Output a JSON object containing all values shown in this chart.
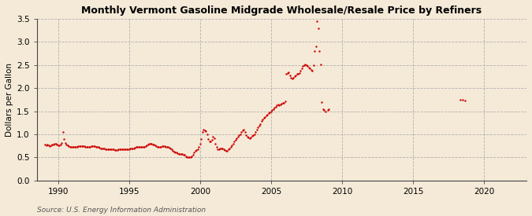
{
  "title": "Monthly Vermont Gasoline Midgrade Wholesale/Resale Price by Refiners",
  "ylabel": "Dollars per Gallon",
  "source": "Source: U.S. Energy Information Administration",
  "background_color": "#f5ead8",
  "plot_bg_color": "#f5ead8",
  "dot_color": "#cc0000",
  "grid_color": "#aaaaaa",
  "spine_color": "#444444",
  "xlim": [
    1988.5,
    2023
  ],
  "ylim": [
    0.0,
    3.5
  ],
  "xticks": [
    1990,
    1995,
    2000,
    2005,
    2010,
    2015,
    2020
  ],
  "yticks": [
    0.0,
    0.5,
    1.0,
    1.5,
    2.0,
    2.5,
    3.0,
    3.5
  ],
  "data": [
    [
      1989.08,
      0.78
    ],
    [
      1989.17,
      0.76
    ],
    [
      1989.25,
      0.77
    ],
    [
      1989.33,
      0.76
    ],
    [
      1989.42,
      0.75
    ],
    [
      1989.5,
      0.76
    ],
    [
      1989.58,
      0.77
    ],
    [
      1989.67,
      0.78
    ],
    [
      1989.75,
      0.79
    ],
    [
      1989.83,
      0.8
    ],
    [
      1989.92,
      0.78
    ],
    [
      1990.0,
      0.76
    ],
    [
      1990.08,
      0.76
    ],
    [
      1990.17,
      0.78
    ],
    [
      1990.25,
      0.82
    ],
    [
      1990.33,
      1.05
    ],
    [
      1990.42,
      0.9
    ],
    [
      1990.5,
      0.82
    ],
    [
      1990.58,
      0.78
    ],
    [
      1990.67,
      0.76
    ],
    [
      1990.75,
      0.74
    ],
    [
      1990.83,
      0.73
    ],
    [
      1990.92,
      0.72
    ],
    [
      1991.0,
      0.72
    ],
    [
      1991.08,
      0.72
    ],
    [
      1991.17,
      0.72
    ],
    [
      1991.25,
      0.73
    ],
    [
      1991.33,
      0.73
    ],
    [
      1991.42,
      0.74
    ],
    [
      1991.5,
      0.74
    ],
    [
      1991.58,
      0.74
    ],
    [
      1991.67,
      0.74
    ],
    [
      1991.75,
      0.74
    ],
    [
      1991.83,
      0.74
    ],
    [
      1991.92,
      0.73
    ],
    [
      1992.0,
      0.73
    ],
    [
      1992.08,
      0.73
    ],
    [
      1992.17,
      0.73
    ],
    [
      1992.25,
      0.73
    ],
    [
      1992.33,
      0.74
    ],
    [
      1992.42,
      0.74
    ],
    [
      1992.5,
      0.74
    ],
    [
      1992.58,
      0.74
    ],
    [
      1992.67,
      0.73
    ],
    [
      1992.75,
      0.72
    ],
    [
      1992.83,
      0.72
    ],
    [
      1992.92,
      0.71
    ],
    [
      1993.0,
      0.7
    ],
    [
      1993.08,
      0.7
    ],
    [
      1993.17,
      0.69
    ],
    [
      1993.25,
      0.69
    ],
    [
      1993.33,
      0.68
    ],
    [
      1993.42,
      0.68
    ],
    [
      1993.5,
      0.68
    ],
    [
      1993.58,
      0.68
    ],
    [
      1993.67,
      0.68
    ],
    [
      1993.75,
      0.68
    ],
    [
      1993.83,
      0.68
    ],
    [
      1993.92,
      0.67
    ],
    [
      1994.0,
      0.66
    ],
    [
      1994.08,
      0.66
    ],
    [
      1994.17,
      0.66
    ],
    [
      1994.25,
      0.67
    ],
    [
      1994.33,
      0.67
    ],
    [
      1994.42,
      0.68
    ],
    [
      1994.5,
      0.68
    ],
    [
      1994.58,
      0.68
    ],
    [
      1994.67,
      0.68
    ],
    [
      1994.75,
      0.68
    ],
    [
      1994.83,
      0.68
    ],
    [
      1994.92,
      0.68
    ],
    [
      1995.0,
      0.68
    ],
    [
      1995.08,
      0.69
    ],
    [
      1995.17,
      0.69
    ],
    [
      1995.25,
      0.7
    ],
    [
      1995.33,
      0.7
    ],
    [
      1995.42,
      0.71
    ],
    [
      1995.5,
      0.72
    ],
    [
      1995.58,
      0.73
    ],
    [
      1995.67,
      0.73
    ],
    [
      1995.75,
      0.73
    ],
    [
      1995.83,
      0.73
    ],
    [
      1995.92,
      0.72
    ],
    [
      1996.0,
      0.72
    ],
    [
      1996.08,
      0.73
    ],
    [
      1996.17,
      0.74
    ],
    [
      1996.25,
      0.76
    ],
    [
      1996.33,
      0.78
    ],
    [
      1996.42,
      0.79
    ],
    [
      1996.5,
      0.79
    ],
    [
      1996.58,
      0.79
    ],
    [
      1996.67,
      0.78
    ],
    [
      1996.75,
      0.77
    ],
    [
      1996.83,
      0.76
    ],
    [
      1996.92,
      0.75
    ],
    [
      1997.0,
      0.73
    ],
    [
      1997.08,
      0.73
    ],
    [
      1997.17,
      0.73
    ],
    [
      1997.25,
      0.73
    ],
    [
      1997.33,
      0.74
    ],
    [
      1997.42,
      0.74
    ],
    [
      1997.5,
      0.74
    ],
    [
      1997.58,
      0.73
    ],
    [
      1997.67,
      0.73
    ],
    [
      1997.75,
      0.72
    ],
    [
      1997.83,
      0.71
    ],
    [
      1997.92,
      0.7
    ],
    [
      1998.0,
      0.68
    ],
    [
      1998.08,
      0.65
    ],
    [
      1998.17,
      0.63
    ],
    [
      1998.25,
      0.61
    ],
    [
      1998.33,
      0.6
    ],
    [
      1998.42,
      0.59
    ],
    [
      1998.5,
      0.58
    ],
    [
      1998.58,
      0.57
    ],
    [
      1998.67,
      0.57
    ],
    [
      1998.75,
      0.57
    ],
    [
      1998.83,
      0.56
    ],
    [
      1998.92,
      0.55
    ],
    [
      1999.0,
      0.52
    ],
    [
      1999.08,
      0.5
    ],
    [
      1999.17,
      0.5
    ],
    [
      1999.25,
      0.5
    ],
    [
      1999.33,
      0.51
    ],
    [
      1999.42,
      0.53
    ],
    [
      1999.5,
      0.56
    ],
    [
      1999.58,
      0.6
    ],
    [
      1999.67,
      0.64
    ],
    [
      1999.75,
      0.66
    ],
    [
      1999.83,
      0.68
    ],
    [
      1999.92,
      0.72
    ],
    [
      2000.0,
      0.8
    ],
    [
      2000.08,
      0.9
    ],
    [
      2000.17,
      1.05
    ],
    [
      2000.25,
      1.1
    ],
    [
      2000.33,
      1.08
    ],
    [
      2000.42,
      1.06
    ],
    [
      2000.5,
      1.0
    ],
    [
      2000.58,
      0.9
    ],
    [
      2000.67,
      0.85
    ],
    [
      2000.75,
      0.85
    ],
    [
      2000.83,
      0.88
    ],
    [
      2000.92,
      0.95
    ],
    [
      2001.0,
      0.92
    ],
    [
      2001.08,
      0.8
    ],
    [
      2001.17,
      0.72
    ],
    [
      2001.25,
      0.68
    ],
    [
      2001.33,
      0.68
    ],
    [
      2001.42,
      0.69
    ],
    [
      2001.5,
      0.7
    ],
    [
      2001.58,
      0.7
    ],
    [
      2001.67,
      0.68
    ],
    [
      2001.75,
      0.66
    ],
    [
      2001.83,
      0.65
    ],
    [
      2001.92,
      0.65
    ],
    [
      2002.0,
      0.68
    ],
    [
      2002.08,
      0.7
    ],
    [
      2002.17,
      0.73
    ],
    [
      2002.25,
      0.76
    ],
    [
      2002.33,
      0.8
    ],
    [
      2002.42,
      0.85
    ],
    [
      2002.5,
      0.88
    ],
    [
      2002.58,
      0.92
    ],
    [
      2002.67,
      0.95
    ],
    [
      2002.75,
      0.98
    ],
    [
      2002.83,
      1.0
    ],
    [
      2002.92,
      1.05
    ],
    [
      2003.0,
      1.08
    ],
    [
      2003.08,
      1.1
    ],
    [
      2003.17,
      1.05
    ],
    [
      2003.25,
      0.98
    ],
    [
      2003.33,
      0.95
    ],
    [
      2003.42,
      0.93
    ],
    [
      2003.5,
      0.92
    ],
    [
      2003.58,
      0.93
    ],
    [
      2003.67,
      0.96
    ],
    [
      2003.75,
      0.98
    ],
    [
      2003.83,
      1.0
    ],
    [
      2003.92,
      1.05
    ],
    [
      2004.0,
      1.1
    ],
    [
      2004.08,
      1.15
    ],
    [
      2004.17,
      1.18
    ],
    [
      2004.25,
      1.22
    ],
    [
      2004.33,
      1.28
    ],
    [
      2004.42,
      1.32
    ],
    [
      2004.5,
      1.35
    ],
    [
      2004.58,
      1.38
    ],
    [
      2004.67,
      1.4
    ],
    [
      2004.75,
      1.43
    ],
    [
      2004.83,
      1.45
    ],
    [
      2004.92,
      1.47
    ],
    [
      2005.0,
      1.5
    ],
    [
      2005.08,
      1.53
    ],
    [
      2005.17,
      1.55
    ],
    [
      2005.25,
      1.57
    ],
    [
      2005.33,
      1.6
    ],
    [
      2005.42,
      1.62
    ],
    [
      2005.5,
      1.65
    ],
    [
      2005.58,
      1.63
    ],
    [
      2005.67,
      1.65
    ],
    [
      2005.75,
      1.67
    ],
    [
      2005.83,
      1.68
    ],
    [
      2005.92,
      1.68
    ],
    [
      2006.0,
      1.72
    ],
    [
      2006.08,
      2.3
    ],
    [
      2006.17,
      2.33
    ],
    [
      2006.25,
      2.35
    ],
    [
      2006.33,
      2.28
    ],
    [
      2006.42,
      2.22
    ],
    [
      2006.5,
      2.2
    ],
    [
      2006.58,
      2.22
    ],
    [
      2006.67,
      2.25
    ],
    [
      2006.75,
      2.28
    ],
    [
      2006.83,
      2.3
    ],
    [
      2006.92,
      2.3
    ],
    [
      2007.0,
      2.32
    ],
    [
      2007.08,
      2.38
    ],
    [
      2007.17,
      2.42
    ],
    [
      2007.25,
      2.48
    ],
    [
      2007.33,
      2.5
    ],
    [
      2007.42,
      2.52
    ],
    [
      2007.5,
      2.5
    ],
    [
      2007.58,
      2.48
    ],
    [
      2007.67,
      2.45
    ],
    [
      2007.75,
      2.42
    ],
    [
      2007.83,
      2.4
    ],
    [
      2007.92,
      2.38
    ],
    [
      2008.0,
      2.5
    ],
    [
      2008.08,
      2.8
    ],
    [
      2008.17,
      2.9
    ],
    [
      2008.25,
      3.45
    ],
    [
      2008.33,
      3.3
    ],
    [
      2008.42,
      2.8
    ],
    [
      2008.5,
      2.52
    ],
    [
      2008.58,
      1.7
    ],
    [
      2008.67,
      1.55
    ],
    [
      2008.75,
      1.52
    ],
    [
      2008.83,
      1.5
    ],
    [
      2009.0,
      1.53
    ],
    [
      2009.08,
      1.55
    ],
    [
      2018.33,
      1.75
    ],
    [
      2018.5,
      1.74
    ],
    [
      2018.67,
      1.73
    ]
  ]
}
